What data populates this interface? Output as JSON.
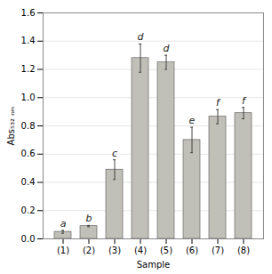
{
  "chart_data": {
    "type": "bar",
    "categories": [
      "(1)",
      "(2)",
      "(3)",
      "(4)",
      "(5)",
      "(6)",
      "(7)",
      "(8)"
    ],
    "values": [
      0.05,
      0.09,
      0.49,
      1.28,
      1.25,
      0.7,
      0.865,
      0.89
    ],
    "errors": [
      0.01,
      0.005,
      0.07,
      0.1,
      0.05,
      0.09,
      0.05,
      0.04
    ],
    "annotations": [
      "a",
      "b",
      "c",
      "d",
      "d",
      "e",
      "f",
      "f"
    ],
    "color": "#c0bfb8",
    "xlabel": "Sample",
    "ylabel": "Abs₅₃₂ ₙₘ",
    "ylim": [
      0.0,
      1.6
    ],
    "yticks": [
      {
        "value": 0.0,
        "label": "0.0"
      },
      0.2,
      0.4,
      0.6,
      0.8,
      {
        "value": 1.0,
        "label": "1.0"
      },
      1.2,
      1.4,
      1.6
    ],
    "grid": true
  }
}
